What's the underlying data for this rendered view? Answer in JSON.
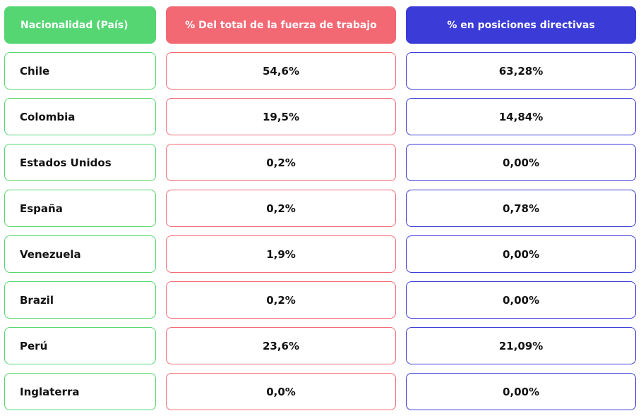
{
  "colors": {
    "green": "#55d673",
    "red": "#f26974",
    "blue": "#3b3bd8"
  },
  "chart_data": {
    "type": "table",
    "columns": [
      "Nacionalidad (País)",
      "% Del total de la fuerza de trabajo",
      "% en posiciones directivas"
    ],
    "rows": [
      [
        "Chile",
        "54,6%",
        "63,28%"
      ],
      [
        "Colombia",
        "19,5%",
        "14,84%"
      ],
      [
        "Estados Unidos",
        "0,2%",
        "0,00%"
      ],
      [
        "España",
        "0,2%",
        "0,78%"
      ],
      [
        "Venezuela",
        "1,9%",
        "0,00%"
      ],
      [
        "Brazil",
        "0,2%",
        "0,00%"
      ],
      [
        "Perú",
        "23,6%",
        "21,09%"
      ],
      [
        "Inglaterra",
        "0,0%",
        "0,00%"
      ]
    ]
  }
}
